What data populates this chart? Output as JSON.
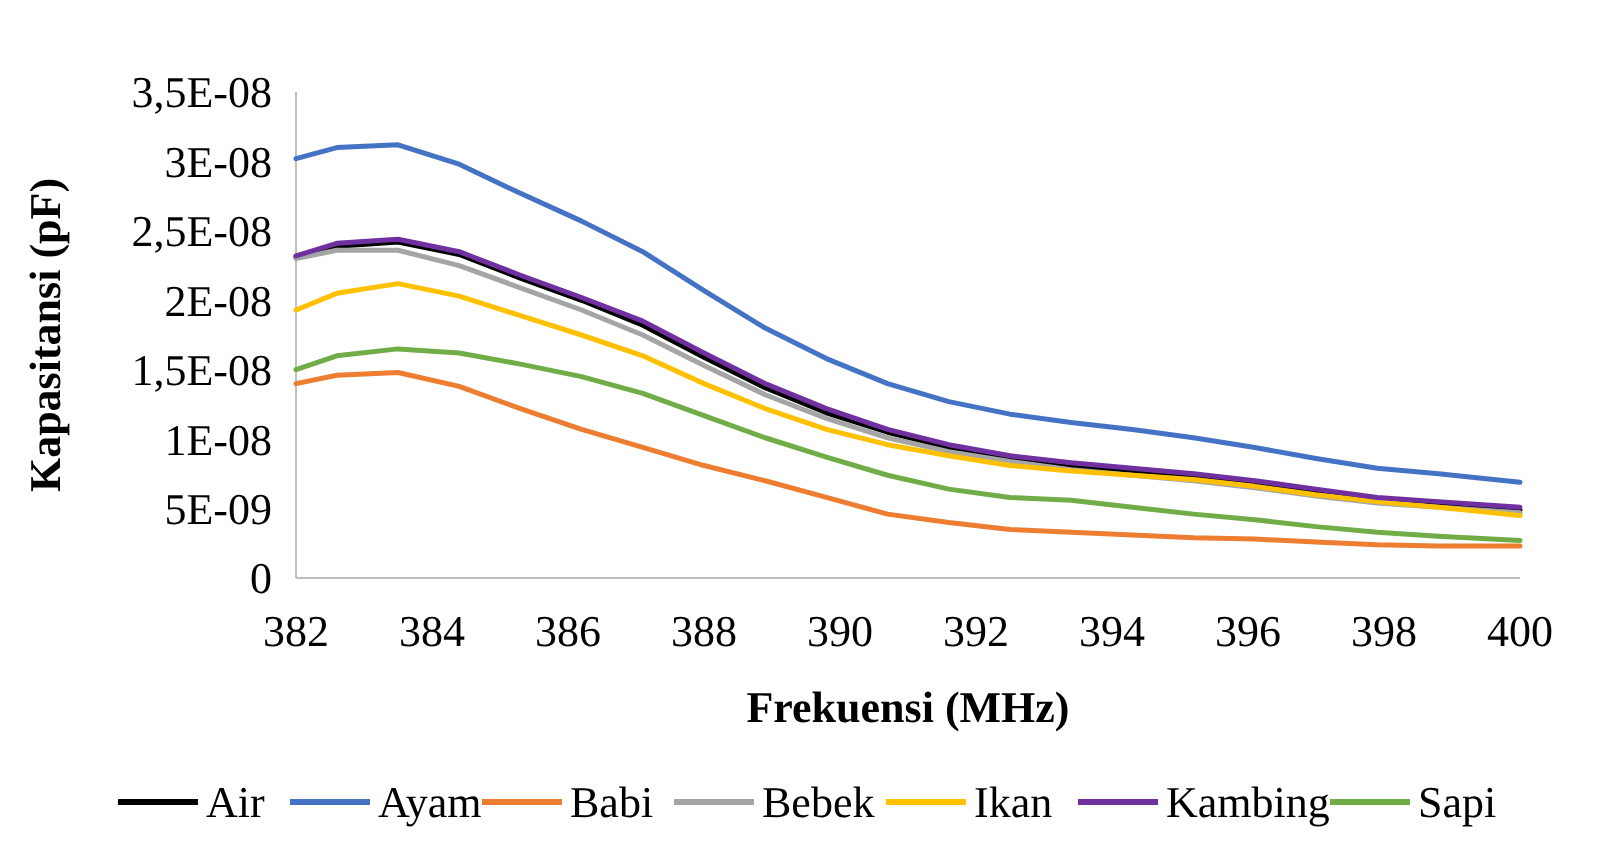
{
  "chart_data": {
    "type": "line",
    "xlabel": "Frekuensi (MHz)",
    "ylabel": "Kapasitansi (pF)",
    "x": [
      382,
      382.6,
      383.5,
      384.4,
      385.3,
      386.2,
      387.1,
      388,
      388.9,
      389.8,
      390.7,
      391.6,
      392.5,
      393.4,
      394.3,
      395.2,
      396.1,
      397,
      397.9,
      398.8,
      400
    ],
    "xlim": [
      382,
      400
    ],
    "xticks": [
      382,
      384,
      386,
      388,
      390,
      392,
      394,
      396,
      398,
      400
    ],
    "ylim": [
      0,
      3.5e-08
    ],
    "yticks": [
      {
        "value": 0,
        "label": "0"
      },
      {
        "value": 5e-09,
        "label": "5E-09"
      },
      {
        "value": 1e-08,
        "label": "1E-08"
      },
      {
        "value": 1.5e-08,
        "label": "1,5E-08"
      },
      {
        "value": 2e-08,
        "label": "2E-08"
      },
      {
        "value": 2.5e-08,
        "label": "2,5E-08"
      },
      {
        "value": 3e-08,
        "label": "3E-08"
      },
      {
        "value": 3.5e-08,
        "label": "3,5E-08"
      }
    ],
    "grid": false,
    "legend": "bottom",
    "marker": "none",
    "line_style": "solid",
    "series": [
      {
        "name": "Air",
        "color": "#000000",
        "values": [
          2.31e-08,
          2.39e-08,
          2.42e-08,
          2.33e-08,
          2.16e-08,
          2e-08,
          1.82e-08,
          1.59e-08,
          1.37e-08,
          1.19e-08,
          1.05e-08,
          9.4e-09,
          8.6e-09,
          8.1e-09,
          7.7e-09,
          7.3e-09,
          6.8e-09,
          6.2e-09,
          5.6e-09,
          5.3e-09,
          4.9e-09
        ]
      },
      {
        "name": "Ayam",
        "color": "#4472c4",
        "values": [
          3.02e-08,
          3.1e-08,
          3.12e-08,
          2.98e-08,
          2.77e-08,
          2.57e-08,
          2.35e-08,
          2.07e-08,
          1.8e-08,
          1.58e-08,
          1.4e-08,
          1.27e-08,
          1.18e-08,
          1.12e-08,
          1.07e-08,
          1.01e-08,
          9.4e-09,
          8.6e-09,
          7.9e-09,
          7.5e-09,
          6.9e-09
        ]
      },
      {
        "name": "Babi",
        "color": "#ed7d31",
        "values": [
          1.4e-08,
          1.46e-08,
          1.48e-08,
          1.38e-08,
          1.22e-08,
          1.07e-08,
          9.4e-09,
          8.1e-09,
          7e-09,
          5.8e-09,
          4.6e-09,
          4e-09,
          3.5e-09,
          3.3e-09,
          3.1e-09,
          2.9e-09,
          2.8e-09,
          2.6e-09,
          2.4e-09,
          2.3e-09,
          2.3e-09
        ]
      },
      {
        "name": "Bebek",
        "color": "#a5a5a5",
        "values": [
          2.3e-08,
          2.36e-08,
          2.36e-08,
          2.25e-08,
          2.09e-08,
          1.93e-08,
          1.75e-08,
          1.53e-08,
          1.32e-08,
          1.15e-08,
          1.01e-08,
          9.1e-09,
          8.4e-09,
          7.8e-09,
          7.4e-09,
          7e-09,
          6.5e-09,
          5.9e-09,
          5.4e-09,
          5.1e-09,
          4.7e-09
        ]
      },
      {
        "name": "Ikan",
        "color": "#ffc000",
        "values": [
          1.93e-08,
          2.05e-08,
          2.12e-08,
          2.03e-08,
          1.89e-08,
          1.75e-08,
          1.6e-08,
          1.4e-08,
          1.22e-08,
          1.07e-08,
          9.6e-09,
          8.8e-09,
          8.1e-09,
          7.7e-09,
          7.4e-09,
          7.1e-09,
          6.6e-09,
          6e-09,
          5.5e-09,
          5.1e-09,
          4.5e-09
        ]
      },
      {
        "name": "Kambing",
        "color": "#7030a0",
        "values": [
          2.32e-08,
          2.41e-08,
          2.44e-08,
          2.35e-08,
          2.18e-08,
          2.02e-08,
          1.85e-08,
          1.62e-08,
          1.4e-08,
          1.22e-08,
          1.07e-08,
          9.6e-09,
          8.8e-09,
          8.3e-09,
          7.9e-09,
          7.5e-09,
          7e-09,
          6.4e-09,
          5.8e-09,
          5.5e-09,
          5.1e-09
        ]
      },
      {
        "name": "Sapi",
        "color": "#70ad47",
        "values": [
          1.5e-08,
          1.6e-08,
          1.65e-08,
          1.62e-08,
          1.54e-08,
          1.45e-08,
          1.33e-08,
          1.17e-08,
          1.01e-08,
          8.7e-09,
          7.4e-09,
          6.4e-09,
          5.8e-09,
          5.6e-09,
          5.1e-09,
          4.6e-09,
          4.2e-09,
          3.7e-09,
          3.3e-09,
          3e-09,
          2.7e-09
        ]
      }
    ]
  }
}
